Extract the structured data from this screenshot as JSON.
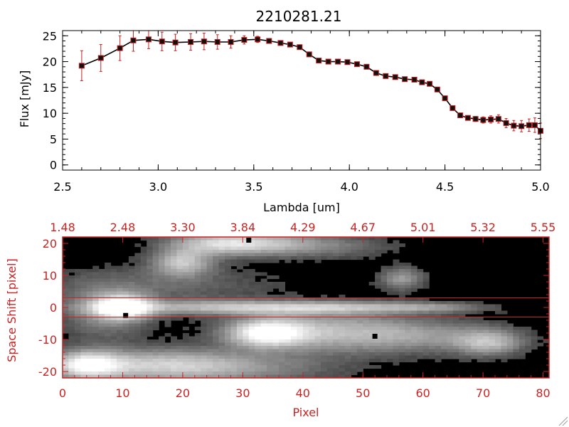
{
  "figure_title": "2210281.21",
  "colors": {
    "axis": "#000000",
    "error": "#cc1f1f",
    "marker_edge": "#cc1f1f",
    "marker_fill": "#111111",
    "bottom_axis": "#cc2222",
    "background": "#ffffff"
  },
  "chart_data": [
    {
      "type": "line",
      "title": "2210281.21",
      "xlabel": "Lambda [um]",
      "ylabel": "Flux [mJy]",
      "xlim": [
        2.5,
        5.0
      ],
      "ylim": [
        -1,
        26
      ],
      "x_ticks": [
        2.5,
        3.0,
        3.5,
        4.0,
        4.5,
        5.0
      ],
      "x_tick_labels": [
        "2.5",
        "3.0",
        "3.5",
        "4.0",
        "4.5",
        "5.0"
      ],
      "y_ticks": [
        0,
        5,
        10,
        15,
        20,
        25
      ],
      "y_tick_labels": [
        "0",
        "5",
        "10",
        "15",
        "20",
        "25"
      ],
      "grid": false,
      "series": [
        {
          "x": [
            2.6,
            2.7,
            2.8,
            2.87,
            2.95,
            3.02,
            3.09,
            3.17,
            3.24,
            3.31,
            3.38,
            3.45,
            3.52,
            3.58,
            3.64,
            3.69,
            3.74,
            3.79,
            3.84,
            3.89,
            3.94,
            3.99,
            4.04,
            4.09,
            4.14,
            4.19,
            4.24,
            4.29,
            4.34,
            4.38,
            4.42,
            4.46,
            4.5,
            4.54,
            4.58,
            4.62,
            4.66,
            4.7,
            4.74,
            4.78,
            4.82,
            4.86,
            4.9,
            4.94,
            4.97,
            5.0
          ],
          "y": [
            19.2,
            20.7,
            22.6,
            24.1,
            24.3,
            23.9,
            23.7,
            23.8,
            23.9,
            23.8,
            23.8,
            24.2,
            24.3,
            24.0,
            23.6,
            23.3,
            22.8,
            21.4,
            20.2,
            20.0,
            20.0,
            19.9,
            19.5,
            19.0,
            17.8,
            17.2,
            17.0,
            16.6,
            16.5,
            16.0,
            15.7,
            14.6,
            12.9,
            11.0,
            9.6,
            9.1,
            8.9,
            8.7,
            8.8,
            8.9,
            8.1,
            7.6,
            7.5,
            7.7,
            7.7,
            6.6
          ],
          "yerr": [
            2.9,
            2.6,
            2.4,
            2.1,
            1.8,
            1.8,
            1.6,
            1.6,
            1.6,
            1.4,
            1.2,
            0.8,
            0.6,
            0.4,
            0.3,
            0.3,
            0.3,
            0.3,
            0.3,
            0.3,
            0.3,
            0.3,
            0.3,
            0.3,
            0.3,
            0.3,
            0.3,
            0.3,
            0.3,
            0.3,
            0.3,
            0.4,
            0.4,
            0.4,
            0.4,
            0.4,
            0.5,
            0.6,
            0.7,
            0.8,
            0.9,
            1.0,
            1.1,
            1.2,
            1.4,
            1.5
          ]
        }
      ]
    },
    {
      "type": "heatmap",
      "xlabel": "Pixel",
      "ylabel": "Space Shift [pixel]",
      "xlim": [
        0,
        81
      ],
      "ylim": [
        -22,
        22
      ],
      "x_ticks": [
        0,
        10,
        20,
        30,
        40,
        50,
        60,
        70,
        80
      ],
      "x_tick_labels": [
        "0",
        "10",
        "20",
        "30",
        "40",
        "50",
        "60",
        "70",
        "80"
      ],
      "y_ticks": [
        -20,
        -10,
        0,
        10,
        20
      ],
      "y_tick_labels": [
        "-20",
        "-10",
        "0",
        "10",
        "20"
      ],
      "top_axis_ticks": [
        0,
        10,
        20,
        30,
        40,
        50,
        60,
        70,
        80
      ],
      "top_axis_labels": [
        "1.48",
        "2.48",
        "3.30",
        "3.84",
        "4.29",
        "4.67",
        "5.01",
        "5.32",
        "5.55"
      ],
      "trace_limits": [
        -3,
        3
      ],
      "sources": [
        {
          "x": 10,
          "y": 0,
          "amp": 1.0,
          "sx": 3.2,
          "sy": 2.6
        },
        {
          "x": 26,
          "y": 0,
          "amp": 0.55,
          "sx": 14,
          "sy": 1.6
        },
        {
          "x": 48,
          "y": 0,
          "amp": 0.42,
          "sx": 12,
          "sy": 1.3
        },
        {
          "x": 62,
          "y": 0,
          "amp": 0.25,
          "sx": 6,
          "sy": 1.0
        },
        {
          "x": 7,
          "y": -1.5,
          "amp": 0.35,
          "sx": 5,
          "sy": 6
        },
        {
          "x": 26,
          "y": 20,
          "amp": 0.6,
          "sx": 6,
          "sy": 2.5
        },
        {
          "x": 20,
          "y": 14,
          "amp": 0.65,
          "sx": 3.5,
          "sy": 3.0
        },
        {
          "x": 34,
          "y": 20,
          "amp": 0.4,
          "sx": 7,
          "sy": 2.5
        },
        {
          "x": 44,
          "y": 19,
          "amp": 0.25,
          "sx": 8,
          "sy": 2.5
        },
        {
          "x": 56.5,
          "y": 9,
          "amp": 0.45,
          "sx": 2.5,
          "sy": 2.5
        },
        {
          "x": 34,
          "y": -8,
          "amp": 0.9,
          "sx": 4.5,
          "sy": 3.0
        },
        {
          "x": 44,
          "y": -7.5,
          "amp": 0.55,
          "sx": 10,
          "sy": 4.5
        },
        {
          "x": 60,
          "y": -9,
          "amp": 0.35,
          "sx": 9,
          "sy": 3.5
        },
        {
          "x": 71,
          "y": -11,
          "amp": 0.55,
          "sx": 4,
          "sy": 2.8
        },
        {
          "x": 4,
          "y": -18,
          "amp": 0.85,
          "sx": 4,
          "sy": 3.0
        },
        {
          "x": 16,
          "y": -18,
          "amp": 0.6,
          "sx": 10,
          "sy": 3.5
        },
        {
          "x": 30,
          "y": -19,
          "amp": 0.3,
          "sx": 12,
          "sy": 3.5
        },
        {
          "x": 17,
          "y": 7,
          "amp": 0.2,
          "sx": 14,
          "sy": 4
        }
      ],
      "dark_pixels": [
        [
          10.5,
          -2.5
        ],
        [
          52,
          -9
        ],
        [
          31,
          21
        ]
      ],
      "colormap": "grayscale"
    }
  ]
}
